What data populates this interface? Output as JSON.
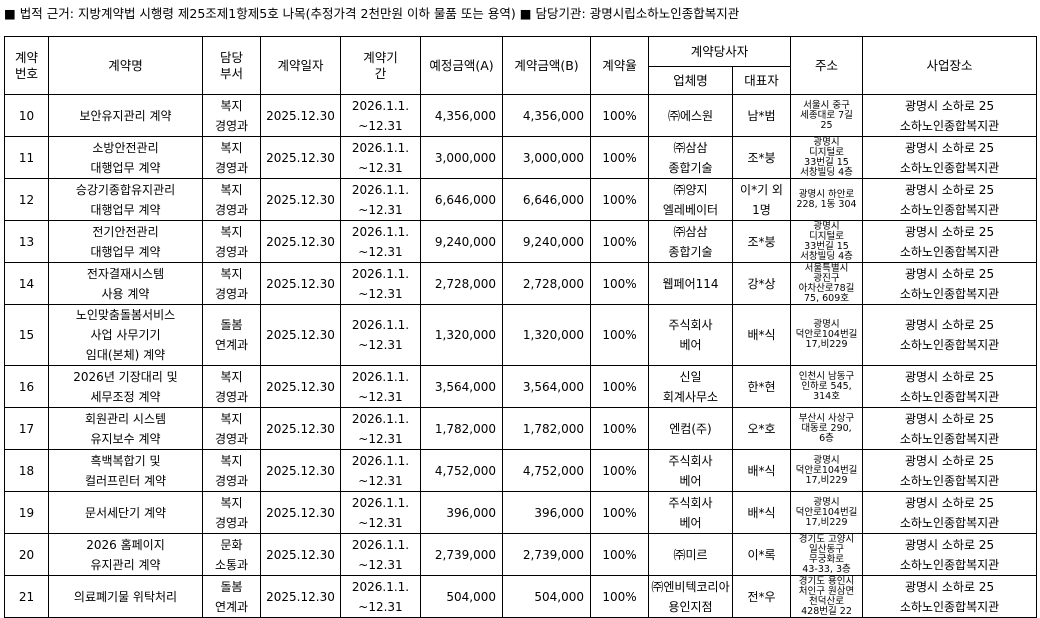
{
  "caption": "■ 법적 근거: 지방계약법 시행령 제25조제1항제5호 나목(추정가격 2천만원 이하 물품 또는 용역) ■ 담당기관: 광명시립소하노인종합복지관",
  "headers": {
    "no": "계약\n번호",
    "name": "계약명",
    "dept": "담당\n부서",
    "date": "계약일자",
    "period": "계약기\n간",
    "est": "예정금액(A)",
    "amount": "계약금액(B)",
    "rate": "계약율",
    "party": "계약당사자",
    "company": "업체명",
    "rep": "대표자",
    "address": "주소",
    "site": "사업장소"
  },
  "rows": [
    {
      "no": "10",
      "name": "보안유지관리 계약",
      "dept": "복지\n경영과",
      "date": "2025.12.30",
      "period": "2026.1.1.\n~12.31",
      "est": "4,356,000",
      "amount": "4,356,000",
      "rate": "100%",
      "company": "㈜에스원",
      "rep": "남*범",
      "address": "서울시 중구\n세종대로 7길\n25",
      "site": "광명시 소하로 25\n소하노인종합복지관"
    },
    {
      "no": "11",
      "name": "소방안전관리\n대행업무 계약",
      "dept": "복지\n경영과",
      "date": "2025.12.30",
      "period": "2026.1.1.\n~12.31",
      "est": "3,000,000",
      "amount": "3,000,000",
      "rate": "100%",
      "company": "㈜삼삼\n종합기술",
      "rep": "조*붕",
      "address": "광명시\n디지털로\n33번길 15\n서창빌딩 4층",
      "site": "광명시 소하로 25\n소하노인종합복지관"
    },
    {
      "no": "12",
      "name": "승강기종합유지관리\n대행업무 계약",
      "dept": "복지\n경영과",
      "date": "2025.12.30",
      "period": "2026.1.1.\n~12.31",
      "est": "6,646,000",
      "amount": "6,646,000",
      "rate": "100%",
      "company": "㈜양지\n엘레베이터",
      "rep": "이*기 외\n1명",
      "address": "광명시 하안로\n228, 1동 304",
      "site": "광명시 소하로 25\n소하노인종합복지관"
    },
    {
      "no": "13",
      "name": "전기안전관리\n대행업무 계약",
      "dept": "복지\n경영과",
      "date": "2025.12.30",
      "period": "2026.1.1.\n~12.31",
      "est": "9,240,000",
      "amount": "9,240,000",
      "rate": "100%",
      "company": "㈜삼삼\n종합기술",
      "rep": "조*붕",
      "address": "광명시\n디지털로\n33번길 15\n서창빌딩 4층",
      "site": "광명시 소하로 25\n소하노인종합복지관"
    },
    {
      "no": "14",
      "name": "전자결재시스템\n사용 계약",
      "dept": "복지\n경영과",
      "date": "2025.12.30",
      "period": "2026.1.1.\n~12.31",
      "est": "2,728,000",
      "amount": "2,728,000",
      "rate": "100%",
      "company": "웹페어114",
      "rep": "강*상",
      "address": "서울특별시\n광진구\n아차산로78길\n75, 609호",
      "site": "광명시 소하로 25\n소하노인종합복지관"
    },
    {
      "no": "15",
      "name": "노인맞춤돌봄서비스\n사업 사무기기\n임대(본체) 계약",
      "dept": "돌봄\n연계과",
      "date": "2025.12.30",
      "period": "2026.1.1.\n~12.31",
      "est": "1,320,000",
      "amount": "1,320,000",
      "rate": "100%",
      "company": "주식회사\n베어",
      "rep": "배*식",
      "address": "광명시\n덕안로104번길\n17,비229",
      "site": "광명시 소하로 25\n소하노인종합복지관"
    },
    {
      "no": "16",
      "name": "2026년 기장대리 및\n세무조정  계약",
      "dept": "복지\n경영과",
      "date": "2025.12.30",
      "period": "2026.1.1.\n~12.31",
      "est": "3,564,000",
      "amount": "3,564,000",
      "rate": "100%",
      "company": "신일\n회계사무소",
      "rep": "한*현",
      "address": "인천시 남동구\n인하로 545,\n314호",
      "site": "광명시 소하로 25\n소하노인종합복지관"
    },
    {
      "no": "17",
      "name": "회원관리 시스템\n유지보수 계약",
      "dept": "복지\n경영과",
      "date": "2025.12.30",
      "period": "2026.1.1.\n~12.31",
      "est": "1,782,000",
      "amount": "1,782,000",
      "rate": "100%",
      "company": "엔컴(주)",
      "rep": "오*호",
      "address": "부산시 사상구\n대동로 290,\n6층",
      "site": "광명시 소하로 25\n소하노인종합복지관"
    },
    {
      "no": "18",
      "name": "흑백복합기 및\n컬러프린터 계약",
      "dept": "복지\n경영과",
      "date": "2025.12.30",
      "period": "2026.1.1.\n~12.31",
      "est": "4,752,000",
      "amount": "4,752,000",
      "rate": "100%",
      "company": "주식회사\n베어",
      "rep": "배*식",
      "address": "광명시\n덕안로104번길\n17,비229",
      "site": "광명시 소하로 25\n소하노인종합복지관"
    },
    {
      "no": "19",
      "name": "문서세단기 계약",
      "dept": "복지\n경영과",
      "date": "2025.12.30",
      "period": "2026.1.1.\n~12.31",
      "est": "396,000",
      "amount": "396,000",
      "rate": "100%",
      "company": "주식회사\n베어",
      "rep": "배*식",
      "address": "광명시\n덕안로104번길\n17,비229",
      "site": "광명시 소하로 25\n소하노인종합복지관"
    },
    {
      "no": "20",
      "name": "2026 홈페이지\n유지관리 계약",
      "dept": "문화\n소통과",
      "date": "2025.12.30",
      "period": "2026.1.1.\n~12.31",
      "est": "2,739,000",
      "amount": "2,739,000",
      "rate": "100%",
      "company": "㈜미르",
      "rep": "이*록",
      "address": "경기도 고양시\n일산동구\n무궁화로\n43-33, 3층",
      "site": "광명시 소하로 25\n소하노인종합복지관"
    },
    {
      "no": "21",
      "name": "의료폐기물 위탁처리",
      "dept": "돌봄\n연계과",
      "date": "2025.12.30",
      "period": "2026.1.1.\n~12.31",
      "est": "504,000",
      "amount": "504,000",
      "rate": "100%",
      "company": "㈜엔비텍코리아\n용인지점",
      "rep": "전*우",
      "address": "경기도 용인시\n처인구 원삼면\n천덕산로\n428번길 22",
      "site": "광명시 소하로 25\n소하노인종합복지관"
    }
  ]
}
